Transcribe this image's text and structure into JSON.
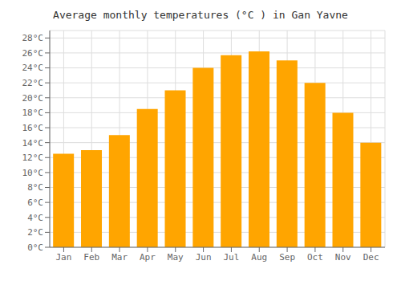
{
  "chart_data": {
    "type": "bar",
    "title": "Average monthly temperatures (°C ) in Gan Yavne",
    "categories": [
      "Jan",
      "Feb",
      "Mar",
      "Apr",
      "May",
      "Jun",
      "Jul",
      "Aug",
      "Sep",
      "Oct",
      "Nov",
      "Dec"
    ],
    "values": [
      12.5,
      13.0,
      15.0,
      18.5,
      21.0,
      24.0,
      25.7,
      26.2,
      25.0,
      22.0,
      18.0,
      14.0
    ],
    "color": "#FFA500",
    "ylim": [
      0,
      29
    ],
    "yticks": [
      {
        "value": 0,
        "label": "0°C"
      },
      {
        "value": 2,
        "label": "2°C"
      },
      {
        "value": 4,
        "label": "4°C"
      },
      {
        "value": 6,
        "label": "6°C"
      },
      {
        "value": 8,
        "label": "8°C"
      },
      {
        "value": 10,
        "label": "10°C"
      },
      {
        "value": 12,
        "label": "12°C"
      },
      {
        "value": 14,
        "label": "14°C"
      },
      {
        "value": 16,
        "label": "16°C"
      },
      {
        "value": 18,
        "label": "18°C"
      },
      {
        "value": 20,
        "label": "20°C"
      },
      {
        "value": 22,
        "label": "22°C"
      },
      {
        "value": 24,
        "label": "24°C"
      },
      {
        "value": 26,
        "label": "26°C"
      },
      {
        "value": 28,
        "label": "28°C"
      }
    ],
    "grid": true
  }
}
